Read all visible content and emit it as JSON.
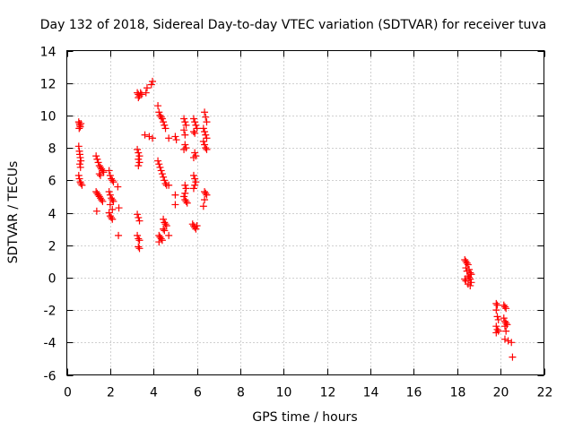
{
  "chart_data": {
    "type": "scatter",
    "title": "Day 132 of 2018, Sidereal Day-to-day VTEC variation (SDTVAR) for receiver tuva",
    "xlabel": "GPS time / hours",
    "ylabel": "SDTVAR / TECUs",
    "xlim": [
      0,
      22
    ],
    "ylim": [
      -6,
      14
    ],
    "xticks": [
      0,
      2,
      4,
      6,
      8,
      10,
      12,
      14,
      16,
      18,
      20,
      22
    ],
    "yticks": [
      -6,
      -4,
      -2,
      0,
      2,
      4,
      6,
      8,
      10,
      12,
      14
    ],
    "grid": true,
    "marker": "+",
    "marker_color": "#ff0000",
    "series": [
      {
        "name": "SDTVAR",
        "points": [
          [
            0.55,
            9.6
          ],
          [
            0.58,
            9.5
          ],
          [
            0.6,
            9.4
          ],
          [
            0.62,
            9.3
          ],
          [
            0.65,
            9.5
          ],
          [
            0.57,
            9.2
          ],
          [
            0.55,
            8.1
          ],
          [
            0.58,
            7.8
          ],
          [
            0.6,
            7.6
          ],
          [
            0.62,
            7.4
          ],
          [
            0.65,
            7.2
          ],
          [
            0.6,
            7.0
          ],
          [
            0.63,
            6.8
          ],
          [
            0.55,
            6.3
          ],
          [
            0.58,
            6.1
          ],
          [
            0.62,
            5.9
          ],
          [
            0.65,
            5.8
          ],
          [
            0.7,
            5.7
          ],
          [
            1.35,
            7.5
          ],
          [
            1.4,
            7.3
          ],
          [
            1.45,
            7.1
          ],
          [
            1.5,
            6.9
          ],
          [
            1.55,
            6.8
          ],
          [
            1.6,
            6.7
          ],
          [
            1.65,
            6.6
          ],
          [
            1.7,
            6.5
          ],
          [
            1.5,
            6.4
          ],
          [
            1.55,
            6.3
          ],
          [
            1.35,
            5.3
          ],
          [
            1.4,
            5.2
          ],
          [
            1.45,
            5.1
          ],
          [
            1.5,
            5.0
          ],
          [
            1.55,
            4.9
          ],
          [
            1.6,
            4.8
          ],
          [
            1.65,
            4.7
          ],
          [
            1.38,
            4.1
          ],
          [
            1.95,
            6.6
          ],
          [
            2.0,
            6.3
          ],
          [
            2.05,
            6.1
          ],
          [
            2.1,
            6.0
          ],
          [
            2.15,
            5.9
          ],
          [
            1.95,
            5.3
          ],
          [
            2.0,
            5.1
          ],
          [
            2.05,
            4.9
          ],
          [
            2.1,
            4.8
          ],
          [
            2.15,
            4.7
          ],
          [
            2.0,
            4.5
          ],
          [
            1.95,
            4.0
          ],
          [
            2.0,
            3.8
          ],
          [
            2.05,
            3.7
          ],
          [
            2.1,
            3.6
          ],
          [
            2.1,
            4.2
          ],
          [
            2.35,
            5.6
          ],
          [
            2.4,
            4.3
          ],
          [
            2.38,
            2.6
          ],
          [
            3.25,
            11.4
          ],
          [
            3.3,
            11.3
          ],
          [
            3.35,
            11.2
          ],
          [
            3.4,
            11.4
          ],
          [
            3.45,
            11.3
          ],
          [
            3.3,
            11.1
          ],
          [
            3.7,
            11.7
          ],
          [
            3.65,
            11.4
          ],
          [
            3.95,
            12.1
          ],
          [
            3.9,
            11.9
          ],
          [
            3.25,
            7.9
          ],
          [
            3.3,
            7.7
          ],
          [
            3.35,
            7.5
          ],
          [
            3.3,
            7.3
          ],
          [
            3.35,
            7.1
          ],
          [
            3.3,
            6.9
          ],
          [
            3.25,
            3.9
          ],
          [
            3.3,
            3.7
          ],
          [
            3.35,
            3.5
          ],
          [
            3.25,
            2.6
          ],
          [
            3.3,
            2.4
          ],
          [
            3.35,
            2.3
          ],
          [
            3.3,
            1.9
          ],
          [
            3.35,
            1.8
          ],
          [
            3.6,
            8.8
          ],
          [
            3.8,
            8.7
          ],
          [
            3.95,
            8.6
          ],
          [
            4.2,
            10.6
          ],
          [
            4.25,
            10.2
          ],
          [
            4.3,
            10.0
          ],
          [
            4.35,
            9.9
          ],
          [
            4.4,
            9.8
          ],
          [
            4.45,
            9.6
          ],
          [
            4.5,
            9.4
          ],
          [
            4.55,
            9.2
          ],
          [
            4.2,
            7.2
          ],
          [
            4.25,
            7.0
          ],
          [
            4.3,
            6.8
          ],
          [
            4.35,
            6.6
          ],
          [
            4.4,
            6.4
          ],
          [
            4.45,
            6.2
          ],
          [
            4.5,
            6.0
          ],
          [
            4.55,
            5.8
          ],
          [
            4.6,
            5.7
          ],
          [
            4.7,
            5.7
          ],
          [
            4.25,
            2.6
          ],
          [
            4.3,
            2.5
          ],
          [
            4.35,
            2.4
          ],
          [
            4.4,
            2.3
          ],
          [
            4.25,
            2.2
          ],
          [
            4.45,
            3.6
          ],
          [
            4.5,
            3.4
          ],
          [
            4.55,
            3.3
          ],
          [
            4.6,
            3.2
          ],
          [
            4.45,
            3.0
          ],
          [
            4.5,
            2.9
          ],
          [
            4.7,
            2.6
          ],
          [
            4.7,
            8.6
          ],
          [
            5.0,
            8.7
          ],
          [
            5.05,
            8.5
          ],
          [
            5.0,
            5.1
          ],
          [
            5.0,
            4.5
          ],
          [
            5.4,
            9.8
          ],
          [
            5.45,
            9.6
          ],
          [
            5.5,
            9.4
          ],
          [
            5.4,
            9.1
          ],
          [
            5.45,
            8.8
          ],
          [
            5.45,
            8.2
          ],
          [
            5.5,
            8.0
          ],
          [
            5.4,
            7.9
          ],
          [
            5.45,
            5.7
          ],
          [
            5.5,
            5.5
          ],
          [
            5.45,
            5.2
          ],
          [
            5.4,
            5.0
          ],
          [
            5.45,
            4.8
          ],
          [
            5.5,
            4.7
          ],
          [
            5.55,
            4.6
          ],
          [
            5.85,
            9.8
          ],
          [
            5.9,
            9.6
          ],
          [
            5.95,
            9.4
          ],
          [
            6.0,
            9.2
          ],
          [
            5.85,
            9.0
          ],
          [
            5.9,
            8.9
          ],
          [
            5.9,
            7.7
          ],
          [
            5.95,
            7.5
          ],
          [
            5.85,
            7.4
          ],
          [
            5.85,
            6.3
          ],
          [
            5.9,
            6.1
          ],
          [
            5.95,
            5.9
          ],
          [
            5.9,
            5.7
          ],
          [
            5.85,
            5.5
          ],
          [
            5.8,
            3.3
          ],
          [
            5.85,
            3.2
          ],
          [
            5.9,
            3.1
          ],
          [
            5.95,
            3.0
          ],
          [
            6.0,
            3.2
          ],
          [
            6.35,
            10.2
          ],
          [
            6.4,
            9.9
          ],
          [
            6.45,
            9.6
          ],
          [
            6.3,
            9.2
          ],
          [
            6.35,
            9.0
          ],
          [
            6.4,
            8.8
          ],
          [
            6.45,
            8.6
          ],
          [
            6.3,
            8.4
          ],
          [
            6.35,
            8.2
          ],
          [
            6.4,
            8.0
          ],
          [
            6.45,
            7.9
          ],
          [
            6.35,
            5.3
          ],
          [
            6.4,
            5.2
          ],
          [
            6.45,
            5.1
          ],
          [
            6.35,
            4.8
          ],
          [
            6.3,
            4.4
          ],
          [
            18.35,
            1.1
          ],
          [
            18.4,
            1.0
          ],
          [
            18.45,
            0.9
          ],
          [
            18.5,
            0.8
          ],
          [
            18.4,
            0.6
          ],
          [
            18.55,
            0.5
          ],
          [
            18.45,
            0.4
          ],
          [
            18.6,
            0.3
          ],
          [
            18.65,
            0.2
          ],
          [
            18.5,
            0.1
          ],
          [
            18.55,
            0.0
          ],
          [
            18.6,
            -0.1
          ],
          [
            18.35,
            -0.1
          ],
          [
            18.4,
            -0.2
          ],
          [
            18.65,
            -0.3
          ],
          [
            18.5,
            -0.4
          ],
          [
            18.6,
            -0.5
          ],
          [
            19.8,
            -1.6
          ],
          [
            19.85,
            -1.7
          ],
          [
            19.8,
            -2.0
          ],
          [
            19.85,
            -2.4
          ],
          [
            19.9,
            -2.6
          ],
          [
            19.8,
            -3.0
          ],
          [
            19.85,
            -3.2
          ],
          [
            19.9,
            -3.3
          ],
          [
            19.8,
            -3.4
          ],
          [
            20.15,
            -1.7
          ],
          [
            20.2,
            -1.8
          ],
          [
            20.25,
            -1.9
          ],
          [
            20.15,
            -2.5
          ],
          [
            20.2,
            -2.7
          ],
          [
            20.25,
            -2.8
          ],
          [
            20.3,
            -2.9
          ],
          [
            20.2,
            -3.0
          ],
          [
            20.25,
            -3.3
          ],
          [
            20.2,
            -3.8
          ],
          [
            20.35,
            -3.9
          ],
          [
            20.5,
            -4.0
          ],
          [
            20.55,
            -4.9
          ]
        ]
      }
    ]
  }
}
